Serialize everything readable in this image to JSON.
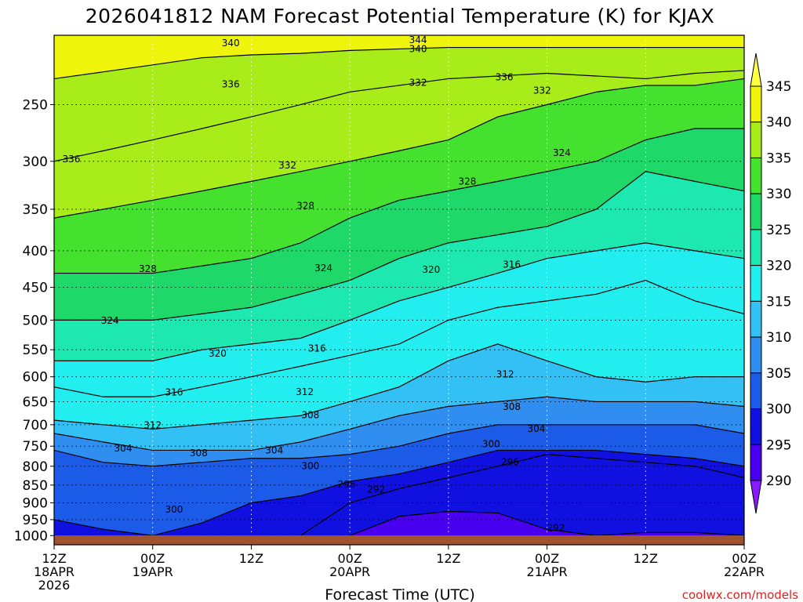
{
  "chart_data": {
    "type": "heatmap",
    "title": "2026041812 NAM Forecast Potential Temperature (K) for KJAX",
    "xlabel": "Forecast Time (UTC)",
    "ylabel": "",
    "credit": "coolwx.com/models",
    "y_scale": "log-pressure",
    "ylim": [
      1030,
      200
    ],
    "xlim_hours": [
      0,
      84
    ],
    "y_ticks": [
      250,
      300,
      350,
      400,
      450,
      500,
      550,
      600,
      650,
      700,
      750,
      800,
      850,
      900,
      950,
      1000
    ],
    "x_ticks": [
      {
        "hour": 0,
        "line1": "12Z",
        "line2": "18APR",
        "line3": "2026"
      },
      {
        "hour": 12,
        "line1": "00Z",
        "line2": "19APR",
        "line3": ""
      },
      {
        "hour": 24,
        "line1": "12Z",
        "line2": "",
        "line3": ""
      },
      {
        "hour": 36,
        "line1": "00Z",
        "line2": "20APR",
        "line3": ""
      },
      {
        "hour": 48,
        "line1": "12Z",
        "line2": "",
        "line3": ""
      },
      {
        "hour": 60,
        "line1": "00Z",
        "line2": "21APR",
        "line3": ""
      },
      {
        "hour": 72,
        "line1": "12Z",
        "line2": "",
        "line3": ""
      },
      {
        "hour": 84,
        "line1": "00Z",
        "line2": "22APR",
        "line3": ""
      }
    ],
    "colorbar": {
      "ticks": [
        345,
        340,
        335,
        330,
        325,
        320,
        315,
        310,
        305,
        300,
        295,
        290
      ],
      "levels": [
        290,
        295,
        300,
        305,
        310,
        315,
        320,
        325,
        330,
        335,
        340,
        345
      ],
      "colors": [
        "#8a1aff",
        "#4a00f0",
        "#1010e0",
        "#1c5ae8",
        "#2f8ef0",
        "#33c0f5",
        "#22eef0",
        "#1ce8b0",
        "#1ed86a",
        "#44e22e",
        "#a8ec1a",
        "#eef50a",
        "#ffff40"
      ]
    },
    "contour_interval": 4,
    "ground_color": "#a0522d",
    "times_hours": [
      0,
      6,
      12,
      18,
      24,
      30,
      36,
      42,
      48,
      54,
      60,
      66,
      72,
      78,
      84
    ],
    "isentropes": [
      {
        "theta": 292,
        "pressure": [
          null,
          null,
          null,
          null,
          null,
          null,
          1000,
          940,
          925,
          930,
          980,
          1000,
          990,
          990,
          1000
        ]
      },
      {
        "theta": 296,
        "pressure": [
          null,
          null,
          null,
          null,
          null,
          1000,
          900,
          860,
          830,
          800,
          770,
          780,
          790,
          800,
          830
        ]
      },
      {
        "theta": 300,
        "pressure": [
          950,
          980,
          1000,
          960,
          900,
          880,
          840,
          820,
          790,
          760,
          760,
          760,
          770,
          780,
          800
        ]
      },
      {
        "theta": 304,
        "pressure": [
          760,
          790,
          800,
          790,
          780,
          780,
          770,
          750,
          720,
          700,
          700,
          700,
          700,
          700,
          720
        ]
      },
      {
        "theta": 308,
        "pressure": [
          720,
          740,
          760,
          760,
          760,
          740,
          710,
          680,
          660,
          650,
          640,
          650,
          650,
          650,
          660
        ]
      },
      {
        "theta": 312,
        "pressure": [
          690,
          700,
          710,
          700,
          690,
          680,
          650,
          620,
          570,
          540,
          570,
          600,
          610,
          600,
          600
        ]
      },
      {
        "theta": 316,
        "pressure": [
          620,
          640,
          640,
          620,
          600,
          580,
          560,
          540,
          500,
          480,
          470,
          460,
          440,
          470,
          490
        ]
      },
      {
        "theta": 320,
        "pressure": [
          570,
          570,
          570,
          550,
          540,
          530,
          500,
          470,
          450,
          430,
          410,
          400,
          390,
          400,
          410
        ]
      },
      {
        "theta": 324,
        "pressure": [
          500,
          500,
          500,
          490,
          480,
          460,
          440,
          410,
          390,
          380,
          370,
          350,
          310,
          320,
          330
        ]
      },
      {
        "theta": 328,
        "pressure": [
          430,
          430,
          430,
          420,
          410,
          390,
          360,
          340,
          330,
          320,
          310,
          300,
          280,
          270,
          270
        ]
      },
      {
        "theta": 332,
        "pressure": [
          360,
          350,
          340,
          330,
          320,
          310,
          300,
          290,
          280,
          260,
          250,
          240,
          235,
          235,
          230
        ]
      },
      {
        "theta": 336,
        "pressure": [
          300,
          290,
          280,
          270,
          260,
          250,
          240,
          235,
          230,
          228,
          226,
          228,
          230,
          226,
          224
        ]
      },
      {
        "theta": 340,
        "pressure": [
          230,
          225,
          220,
          215,
          213,
          212,
          210,
          209,
          208,
          208,
          208,
          208,
          208,
          208,
          208
        ]
      }
    ],
    "contour_labels": [
      {
        "text": "344",
        "hour": 44.3,
        "pressure": 203
      },
      {
        "text": "340",
        "hour": 21.5,
        "pressure": 205
      },
      {
        "text": "340",
        "hour": 44.3,
        "pressure": 209
      },
      {
        "text": "336",
        "hour": 21.5,
        "pressure": 234
      },
      {
        "text": "336",
        "hour": 2.1,
        "pressure": 298
      },
      {
        "text": "336",
        "hour": 54.8,
        "pressure": 229
      },
      {
        "text": "332",
        "hour": 44.3,
        "pressure": 233
      },
      {
        "text": "332",
        "hour": 59.4,
        "pressure": 239
      },
      {
        "text": "332",
        "hour": 28.4,
        "pressure": 304
      },
      {
        "text": "328",
        "hour": 30.6,
        "pressure": 346
      },
      {
        "text": "328",
        "hour": 50.3,
        "pressure": 320
      },
      {
        "text": "328",
        "hour": 11.4,
        "pressure": 424
      },
      {
        "text": "324",
        "hour": 61.8,
        "pressure": 292
      },
      {
        "text": "324",
        "hour": 32.8,
        "pressure": 423
      },
      {
        "text": "324",
        "hour": 6.8,
        "pressure": 501
      },
      {
        "text": "320",
        "hour": 45.9,
        "pressure": 425
      },
      {
        "text": "320",
        "hour": 19.9,
        "pressure": 557
      },
      {
        "text": "316",
        "hour": 55.7,
        "pressure": 418
      },
      {
        "text": "316",
        "hour": 32.0,
        "pressure": 548
      },
      {
        "text": "316",
        "hour": 14.6,
        "pressure": 631
      },
      {
        "text": "312",
        "hour": 54.9,
        "pressure": 595
      },
      {
        "text": "312",
        "hour": 30.5,
        "pressure": 630
      },
      {
        "text": "312",
        "hour": 12.0,
        "pressure": 701
      },
      {
        "text": "308",
        "hour": 55.7,
        "pressure": 661
      },
      {
        "text": "308",
        "hour": 31.2,
        "pressure": 679
      },
      {
        "text": "308",
        "hour": 17.6,
        "pressure": 767
      },
      {
        "text": "304",
        "hour": 58.7,
        "pressure": 709
      },
      {
        "text": "304",
        "hour": 26.8,
        "pressure": 760
      },
      {
        "text": "304",
        "hour": 8.4,
        "pressure": 755
      },
      {
        "text": "300",
        "hour": 53.2,
        "pressure": 745
      },
      {
        "text": "300",
        "hour": 31.2,
        "pressure": 799
      },
      {
        "text": "300",
        "hour": 14.6,
        "pressure": 920
      },
      {
        "text": "296",
        "hour": 55.5,
        "pressure": 789
      },
      {
        "text": "296",
        "hour": 35.6,
        "pressure": 848
      },
      {
        "text": "292",
        "hour": 39.2,
        "pressure": 862
      },
      {
        "text": "292",
        "hour": 61.1,
        "pressure": 976
      }
    ]
  }
}
